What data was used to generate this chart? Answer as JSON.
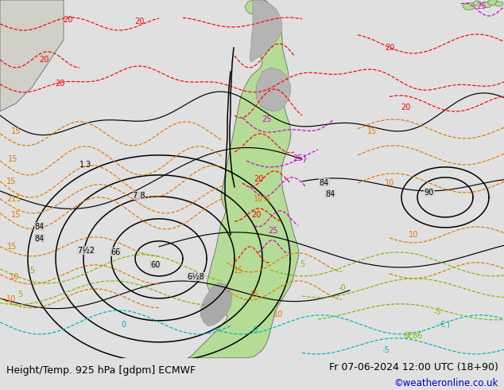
{
  "title_left": "Height/Temp. 925 hPa [gdpm] ECMWF",
  "title_right": "Fr 07-06-2024 12:00 UTC (18+90)",
  "credit": "©weatheronline.co.uk",
  "fig_width": 6.34,
  "fig_height": 4.9,
  "dpi": 100,
  "title_fontsize": 9.0,
  "credit_fontsize": 8.5,
  "title_color": "#000000",
  "credit_color": "#0000cc",
  "bottom_bar_color": "#e0e0e0",
  "ocean_color": "#d2d2d2",
  "land_green": "#b5dc96",
  "land_gray": "#b4b4b4",
  "col_black": "#000000",
  "col_red": "#ff0000",
  "col_orange": "#e07800",
  "col_magenta": "#cc00cc",
  "col_green": "#80b800",
  "col_cyan": "#00b4b4",
  "lw_contour": 0.85,
  "lw_thick": 1.1
}
